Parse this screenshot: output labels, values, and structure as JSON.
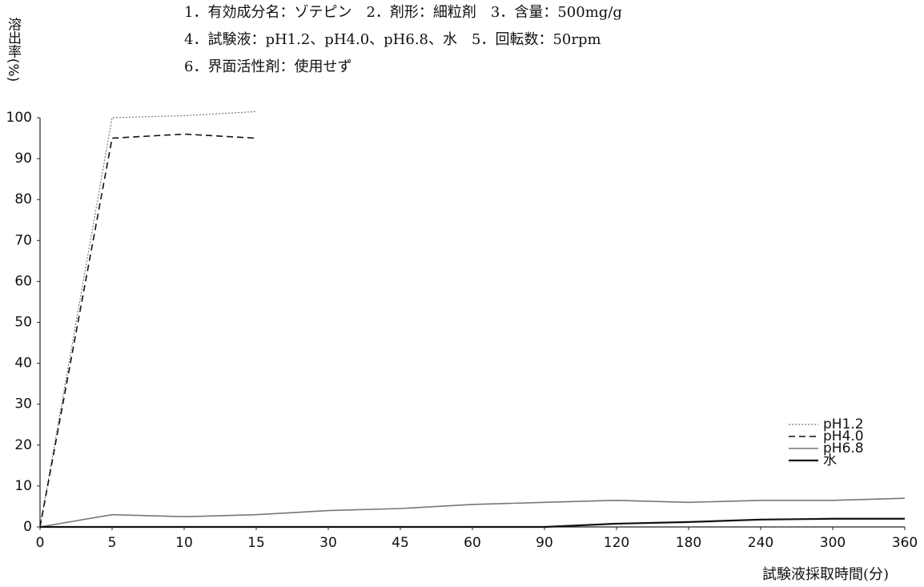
{
  "chart_data": {
    "type": "line",
    "title_lines": [
      "1．有効成分名：ゾテピン　2．剤形：細粒剤　3．含量：500mg/g",
      "4．試験液：pH1.2、pH4.0、pH6.8、水　5．回転数：50rpm",
      "6．界面活性剤：使用せず"
    ],
    "y_label": "溶出率(%)",
    "x_label": "試験液採取時間(分)",
    "categories": [
      "0",
      "5",
      "10",
      "15",
      "30",
      "45",
      "60",
      "90",
      "120",
      "180",
      "240",
      "300",
      "360"
    ],
    "series": [
      {
        "name": "pH1.2",
        "color": "#777777",
        "dash": "2,2",
        "width": 1.2,
        "values": [
          0,
          100,
          100.5,
          101.5,
          null,
          null,
          null,
          null,
          null,
          null,
          null,
          null,
          null
        ]
      },
      {
        "name": "pH4.0",
        "color": "#111111",
        "dash": "8,5",
        "width": 1.6,
        "values": [
          0,
          95,
          96,
          95,
          null,
          null,
          null,
          null,
          null,
          null,
          null,
          null,
          null
        ]
      },
      {
        "name": "pH6.8",
        "color": "#777777",
        "dash": "none",
        "width": 1.6,
        "values": [
          0,
          3,
          2.5,
          3,
          4,
          4.5,
          5.5,
          6,
          6.5,
          6,
          6.5,
          6.5,
          7
        ]
      },
      {
        "name": "水",
        "color": "#111111",
        "dash": "none",
        "width": 2.2,
        "values": [
          0,
          0,
          0,
          0,
          0,
          0,
          0,
          0,
          0.8,
          1.2,
          1.8,
          2,
          2
        ]
      }
    ],
    "ylim": [
      0,
      100
    ],
    "yticks": [
      0,
      10,
      20,
      30,
      40,
      50,
      60,
      70,
      80,
      90,
      100
    ],
    "legend": "lower-right"
  }
}
